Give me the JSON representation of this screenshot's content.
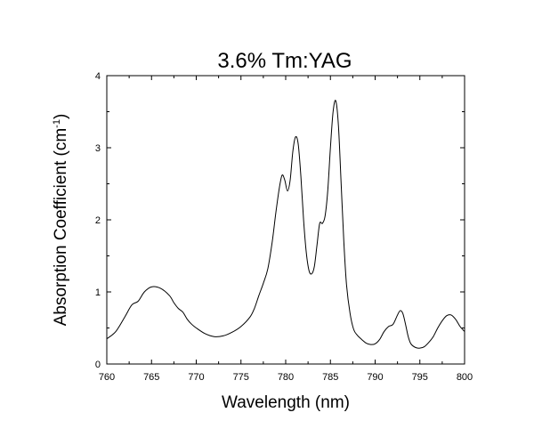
{
  "chart_data": {
    "type": "line",
    "title": "3.6% Tm:YAG",
    "xlabel": "Wavelength (nm)",
    "ylabel_main": "Absorption Coefficient (cm",
    "ylabel_sup": "-1",
    "ylabel_close": ")",
    "xlim": [
      760,
      800
    ],
    "ylim": [
      0,
      4
    ],
    "grid": false,
    "legend": "none",
    "line_color": "#000000",
    "x_ticks": [
      760,
      765,
      770,
      775,
      780,
      785,
      790,
      795,
      800
    ],
    "x_tick_labels": [
      "760",
      "765",
      "770",
      "775",
      "780",
      "785",
      "790",
      "795",
      "800"
    ],
    "y_ticks": [
      0,
      1,
      2,
      3,
      4
    ],
    "y_tick_labels": [
      "0",
      "1",
      "2",
      "3",
      "4"
    ],
    "series": [
      {
        "x": [
          760,
          761,
          762,
          762.8,
          763.5,
          764.2,
          765,
          766,
          767,
          767.5,
          768,
          768.5,
          769,
          769.5,
          770,
          771,
          772,
          773,
          774,
          775,
          776,
          776.5,
          777,
          777.5,
          778,
          778.5,
          778.9,
          779.3,
          779.6,
          779.9,
          780.2,
          780.5,
          780.8,
          781.1,
          781.4,
          781.7,
          782,
          782.3,
          782.6,
          782.9,
          783.2,
          783.5,
          783.8,
          784.1,
          784.4,
          784.7,
          785,
          785.3,
          785.6,
          785.9,
          786.2,
          786.5,
          786.8,
          787.2,
          787.6,
          788,
          788.5,
          789,
          789.5,
          790,
          790.5,
          791,
          791.5,
          792,
          792.5,
          792.8,
          793.1,
          793.4,
          793.7,
          794,
          794.5,
          795,
          795.5,
          796,
          796.5,
          797,
          797.5,
          798,
          798.5,
          799,
          799.5,
          800
        ],
        "y": [
          0.35,
          0.45,
          0.65,
          0.82,
          0.87,
          1.0,
          1.07,
          1.05,
          0.95,
          0.85,
          0.77,
          0.72,
          0.62,
          0.55,
          0.5,
          0.42,
          0.38,
          0.39,
          0.44,
          0.52,
          0.65,
          0.77,
          0.95,
          1.12,
          1.32,
          1.7,
          2.1,
          2.45,
          2.62,
          2.55,
          2.4,
          2.55,
          2.95,
          3.15,
          3.05,
          2.6,
          2.0,
          1.55,
          1.3,
          1.25,
          1.35,
          1.65,
          1.95,
          1.95,
          2.05,
          2.4,
          3.0,
          3.5,
          3.65,
          3.3,
          2.5,
          1.7,
          1.1,
          0.7,
          0.48,
          0.4,
          0.34,
          0.29,
          0.27,
          0.28,
          0.34,
          0.45,
          0.52,
          0.55,
          0.68,
          0.74,
          0.7,
          0.55,
          0.38,
          0.28,
          0.23,
          0.22,
          0.24,
          0.3,
          0.38,
          0.5,
          0.6,
          0.67,
          0.68,
          0.62,
          0.52,
          0.45
        ]
      }
    ]
  }
}
